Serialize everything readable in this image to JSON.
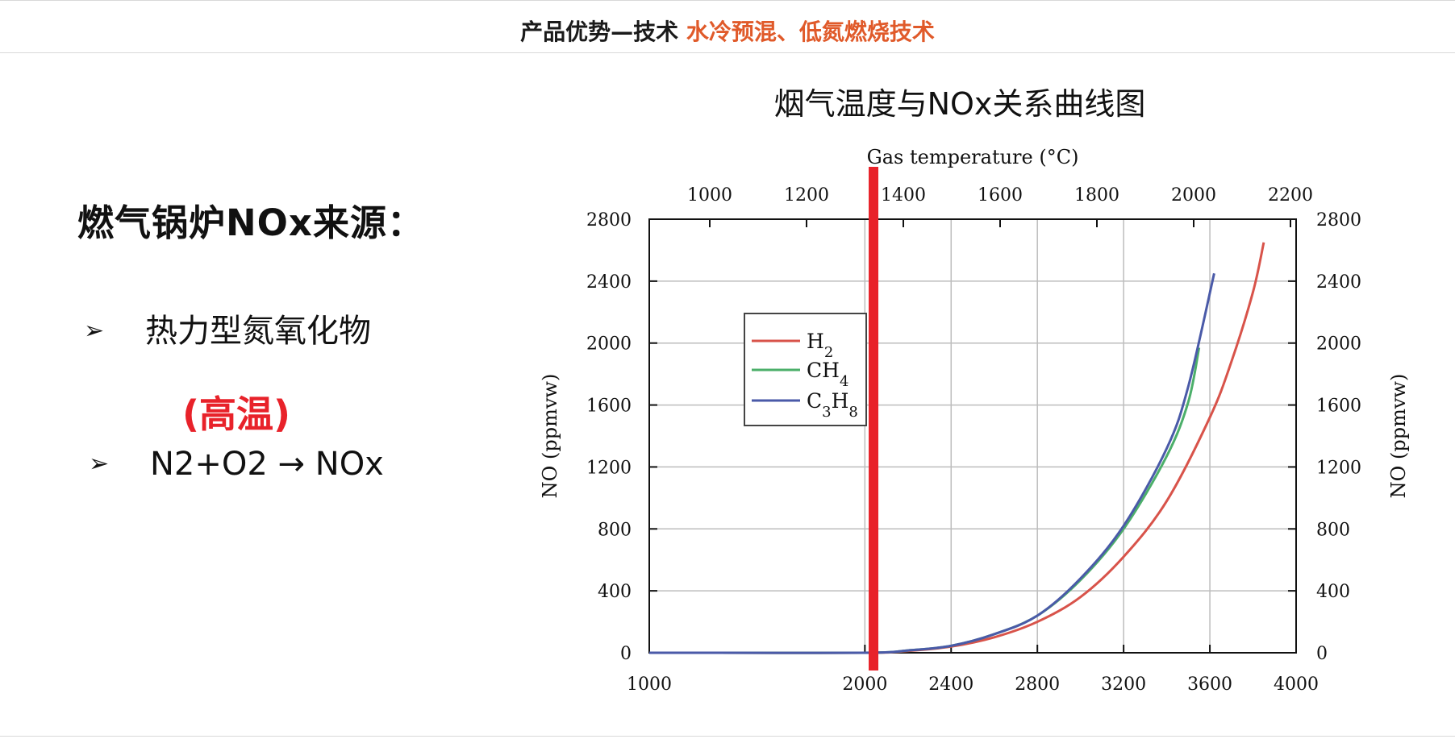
{
  "header": {
    "prefix": "产品优势—技术",
    "highlight": "水冷预混、低氮燃烧技术",
    "colors": {
      "prefix": "#1a1a1a",
      "highlight": "#e05a2a"
    }
  },
  "left": {
    "title": "燃气锅炉NOx来源：",
    "bullet1": {
      "marker": "➢",
      "text": "热力型氮氧化物"
    },
    "highlight": "(高温)",
    "bullet2": {
      "marker": "➢",
      "text": "N2+O2 → NOx"
    }
  },
  "chart_data": {
    "type": "line",
    "title": "烟气温度与NOx关系曲线图",
    "top_axis_label": "Gas temperature (°C)",
    "top_ticks": [
      1000,
      1200,
      1400,
      1600,
      1800,
      2000,
      2200
    ],
    "xlim": [
      1000,
      4000
    ],
    "x_ticks": [
      1000,
      2000,
      2400,
      2800,
      3200,
      3600,
      4000
    ],
    "ylabel_left": "NO (ppmvw)",
    "ylabel_right": "NO (ppmvw)",
    "ylim": [
      0,
      2800
    ],
    "y_ticks": [
      0,
      400,
      800,
      1200,
      1600,
      2000,
      2400,
      2800
    ],
    "grid": true,
    "legend_position": "upper-left",
    "marker_line": {
      "x": 2040,
      "color": "#e8222a"
    },
    "series": [
      {
        "name": "H2",
        "color": "#d8534a",
        "x": [
          1000,
          1200,
          2000,
          2200,
          2400,
          2600,
          2800,
          3000,
          3200,
          3400,
          3600,
          3700,
          3800,
          3850
        ],
        "y": [
          0,
          0,
          0,
          12,
          40,
          100,
          200,
          360,
          620,
          980,
          1520,
          1880,
          2330,
          2650
        ]
      },
      {
        "name": "CH4",
        "color": "#4caf6a",
        "x": [
          1000,
          1200,
          2000,
          2200,
          2400,
          2600,
          2800,
          3000,
          3200,
          3400,
          3500,
          3550
        ],
        "y": [
          0,
          0,
          0,
          15,
          45,
          120,
          240,
          470,
          800,
          1270,
          1620,
          1970
        ]
      },
      {
        "name": "C3H8",
        "color": "#4a5aa8",
        "x": [
          1000,
          1200,
          2000,
          2200,
          2400,
          2600,
          2800,
          3000,
          3200,
          3400,
          3500,
          3620
        ],
        "y": [
          0,
          0,
          0,
          15,
          45,
          120,
          240,
          480,
          820,
          1320,
          1720,
          2450
        ]
      }
    ]
  }
}
